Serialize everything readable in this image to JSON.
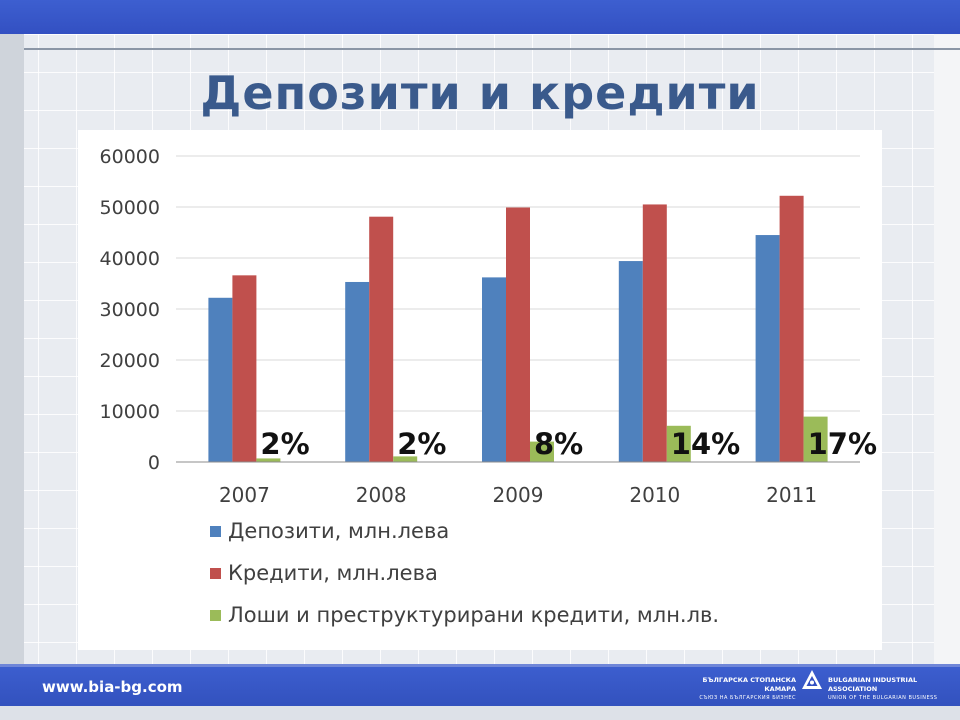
{
  "slide": {
    "title": "Депозити и кредити"
  },
  "colors": {
    "deposits": "#4f81bd",
    "credits": "#c0504d",
    "bad_loans": "#9bbb59",
    "title": "#3a5a8c",
    "band": "#3350c2"
  },
  "chart_data": {
    "type": "bar",
    "categories": [
      "2007",
      "2008",
      "2009",
      "2010",
      "2011"
    ],
    "series": [
      {
        "name": "Депозити, млн.лева",
        "values": [
          32200,
          35300,
          36200,
          39400,
          44500
        ]
      },
      {
        "name": "Кредити, млн.лева",
        "values": [
          36600,
          48100,
          49900,
          50500,
          52200
        ]
      },
      {
        "name": "Лоши и преструктурирани кредити, млн.лв.",
        "values": [
          700,
          1100,
          4000,
          7100,
          8900
        ]
      }
    ],
    "annotations": [
      "2%",
      "2%",
      "8%",
      "14%",
      "17%"
    ],
    "ylim": [
      0,
      60000
    ],
    "yticks": [
      "0",
      "10000",
      "20000",
      "30000",
      "40000",
      "50000",
      "60000"
    ],
    "grid": true,
    "legend_placement": "bottom"
  },
  "footer": {
    "url": "www.bia-bg.com",
    "org_bg_name": "БЪЛГАРСКА СТОПАНСКА КАМАРА",
    "org_bg_sub": "СЪЮЗ НА БЪЛГАРСКИЯ БИЗНЕС",
    "org_en_name": "BULGARIAN INDUSTRIAL ASSOCIATION",
    "org_en_sub": "UNION OF THE BULGARIAN BUSINESS",
    "logo_icon": "bia-triangle-logo-icon"
  }
}
